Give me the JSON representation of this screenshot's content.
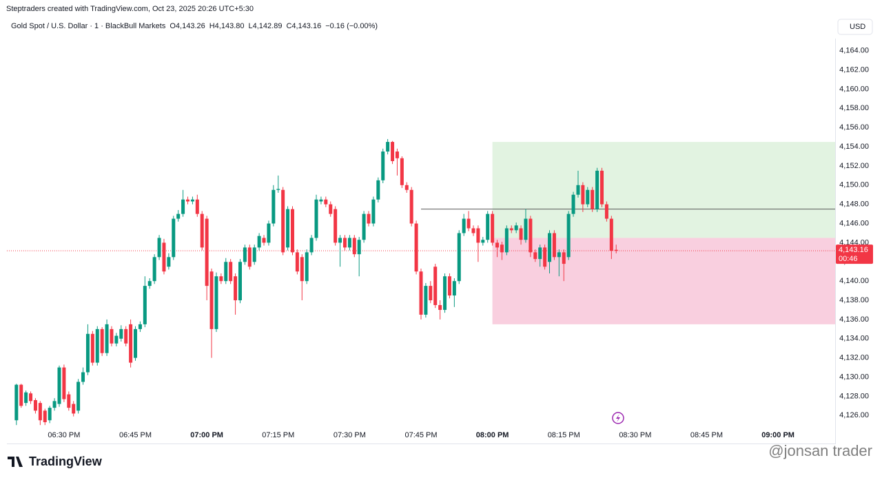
{
  "header": "Steptraders created with TradingView.com, Oct 23, 2025 20:26 UTC+5:30",
  "logo": "TradingView",
  "watermark": "@jonsan trader",
  "chart_data": {
    "type": "candlestick",
    "symbol": "Gold Spot / U.S. Dollar · 1 · BlackBull Markets",
    "ohlc_legend": [
      "O4,143.26",
      "H4,143.80",
      "L4,142.89",
      "C4,143.16",
      "−0.16 (−0.00%)"
    ],
    "currency": "USD",
    "up_color": "#089981",
    "down_color": "#f23645",
    "x": [
      "06:20 PM",
      "06:21 PM",
      "06:22 PM",
      "06:23 PM",
      "06:24 PM",
      "06:25 PM",
      "06:26 PM",
      "06:27 PM",
      "06:28 PM",
      "06:29 PM",
      "06:30 PM",
      "06:31 PM",
      "06:32 PM",
      "06:33 PM",
      "06:34 PM",
      "06:35 PM",
      "06:36 PM",
      "06:37 PM",
      "06:38 PM",
      "06:39 PM",
      "06:40 PM",
      "06:41 PM",
      "06:42 PM",
      "06:43 PM",
      "06:44 PM",
      "06:45 PM",
      "06:46 PM",
      "06:47 PM",
      "06:48 PM",
      "06:49 PM",
      "06:50 PM",
      "06:51 PM",
      "06:52 PM",
      "06:53 PM",
      "06:54 PM",
      "06:55 PM",
      "06:56 PM",
      "06:57 PM",
      "06:58 PM",
      "06:59 PM",
      "07:00 PM",
      "07:01 PM",
      "07:02 PM",
      "07:03 PM",
      "07:04 PM",
      "07:05 PM",
      "07:06 PM",
      "07:07 PM",
      "07:08 PM",
      "07:09 PM",
      "07:10 PM",
      "07:11 PM",
      "07:12 PM",
      "07:13 PM",
      "07:14 PM",
      "07:15 PM",
      "07:16 PM",
      "07:17 PM",
      "07:18 PM",
      "07:19 PM",
      "07:20 PM",
      "07:21 PM",
      "07:22 PM",
      "07:23 PM",
      "07:24 PM",
      "07:25 PM",
      "07:26 PM",
      "07:27 PM",
      "07:28 PM",
      "07:29 PM",
      "07:30 PM",
      "07:31 PM",
      "07:32 PM",
      "07:33 PM",
      "07:34 PM",
      "07:35 PM",
      "07:36 PM",
      "07:37 PM",
      "07:38 PM",
      "07:39 PM",
      "07:40 PM",
      "07:41 PM",
      "07:42 PM",
      "07:43 PM",
      "07:44 PM",
      "07:45 PM",
      "07:46 PM",
      "07:47 PM",
      "07:48 PM",
      "07:49 PM",
      "07:50 PM",
      "07:51 PM",
      "07:52 PM",
      "07:53 PM",
      "07:54 PM",
      "07:55 PM",
      "07:56 PM",
      "07:57 PM",
      "07:58 PM",
      "07:59 PM",
      "08:00 PM",
      "08:01 PM",
      "08:02 PM",
      "08:03 PM",
      "08:04 PM",
      "08:05 PM",
      "08:06 PM",
      "08:07 PM",
      "08:08 PM",
      "08:09 PM",
      "08:10 PM",
      "08:11 PM",
      "08:12 PM",
      "08:13 PM",
      "08:14 PM",
      "08:15 PM",
      "08:16 PM",
      "08:17 PM",
      "08:18 PM",
      "08:19 PM",
      "08:20 PM",
      "08:21 PM",
      "08:22 PM",
      "08:23 PM",
      "08:24 PM",
      "08:25 PM",
      "08:26 PM"
    ],
    "open": [
      4125.5,
      4129.2,
      4127.3,
      4128.3,
      4127.6,
      4127.3,
      4126.5,
      4125.5,
      4126.8,
      4127.2,
      4131,
      4128.2,
      4127.2,
      4126.5,
      4129.5,
      4130.5,
      4134.5,
      4131.5,
      4135,
      4132.5,
      4135,
      4133.5,
      4134,
      4135,
      4135.5,
      4132,
      4135,
      4135.5,
      4139.5,
      4140,
      4142.5,
      4144,
      4141.5,
      4142.5,
      4146.5,
      4147,
      4148.5,
      4148.3,
      4148.5,
      4147,
      4146.5,
      4141,
      4135,
      4140.5,
      4140,
      4142,
      4140.5,
      4138,
      4142,
      4143.5,
      4142,
      4143.5,
      4144.5,
      4144,
      4146,
      4149.5,
      4149.5,
      4143.5,
      4147.5,
      4143,
      4142.5,
      4140,
      4143,
      4144.5,
      4148.3,
      4148.5,
      4148,
      4147.5,
      4144,
      4144.5,
      4143.5,
      4144.5,
      4142.8,
      4144.3,
      4147,
      4146,
      4148.5,
      4150.5,
      4153.5,
      4154.5,
      4153.5,
      4152.8,
      4150,
      4149.5,
      4146,
      4141,
      4136.5,
      4139.5,
      4141.5,
      4137.5,
      4137,
      4140.5,
      4138.5,
      4140,
      4145,
      4146.5,
      4145.5,
      4145.5,
      4144,
      4144.3,
      4147,
      4144,
      4143.8,
      4143,
      4145.5,
      4145.3,
      4145.5,
      4144.3,
      4146.5,
      4143,
      4142.3,
      4143.5,
      4142,
      4145,
      4142.5,
      4143,
      4142.5,
      4147,
      4149,
      4150,
      4148,
      4149.5,
      4147.5,
      4151.5,
      4148,
      4146.5,
      4143.26
    ],
    "high": [
      4129.3,
      4129.3,
      4128.6,
      4128.5,
      4127.8,
      4127.5,
      4126.7,
      4127,
      4127.8,
      4131.2,
      4131.3,
      4128.5,
      4127.5,
      4129.8,
      4131,
      4135.5,
      4134.8,
      4135.3,
      4135.2,
      4136,
      4135.3,
      4134.6,
      4135.4,
      4135.3,
      4136,
      4135.3,
      4135.8,
      4140.5,
      4140.3,
      4142.8,
      4144.8,
      4144.4,
      4142.9,
      4146.8,
      4147.4,
      4149.5,
      4148.8,
      4148.8,
      4149,
      4147.3,
      4146.8,
      4141.3,
      4140.9,
      4140.8,
      4142.4,
      4142.3,
      4140.8,
      4142.3,
      4143.8,
      4143.8,
      4143.8,
      4145,
      4144.8,
      4146.3,
      4150,
      4151,
      4149.8,
      4147.8,
      4147.8,
      4143.3,
      4142.8,
      4143.3,
      4144.8,
      4149,
      4148.8,
      4148.8,
      4148.3,
      4147.8,
      4144.8,
      4144.8,
      4144.8,
      4144.8,
      4144.6,
      4147.3,
      4147.3,
      4148.8,
      4150.8,
      4153.8,
      4154.8,
      4154.6,
      4153.8,
      4153,
      4150.3,
      4149.8,
      4146.3,
      4141.3,
      4139.8,
      4140,
      4141.8,
      4138,
      4140.8,
      4140.8,
      4140.3,
      4145.3,
      4147,
      4147.3,
      4145.8,
      4145.8,
      4144.6,
      4147.3,
      4147.3,
      4144.3,
      4144.1,
      4145.8,
      4145.8,
      4146.1,
      4145.8,
      4147.5,
      4146.8,
      4143.3,
      4143.8,
      4143.8,
      4145.3,
      4145.3,
      4143.3,
      4143.3,
      4147.3,
      4149.3,
      4151.5,
      4150.3,
      4149.8,
      4149.8,
      4151.8,
      4151.8,
      4148.3,
      4146.8,
      4143.8
    ],
    "low": [
      4125,
      4126.8,
      4127,
      4127.2,
      4126.2,
      4125,
      4125,
      4125.2,
      4126.5,
      4126.9,
      4127.4,
      4126.5,
      4125.9,
      4126.2,
      4129.2,
      4130.2,
      4131.2,
      4131.2,
      4132.2,
      4132.2,
      4133.2,
      4133.2,
      4133.7,
      4133.2,
      4131,
      4131.7,
      4134.7,
      4135.2,
      4139.2,
      4139.7,
      4142.2,
      4140.7,
      4141.2,
      4142.2,
      4146.2,
      4146.7,
      4148,
      4148,
      4146.7,
      4143.2,
      4138,
      4132,
      4134.7,
      4139.7,
      4139.7,
      4139.7,
      4136.5,
      4137.7,
      4141.7,
      4141.2,
      4141.7,
      4143.2,
      4143.7,
      4143.7,
      4145.7,
      4149.2,
      4142.7,
      4143.2,
      4142.7,
      4140.7,
      4138,
      4139.7,
      4142.7,
      4144.2,
      4148,
      4147.7,
      4146.7,
      4143.7,
      4141.5,
      4143.2,
      4143.2,
      4142.5,
      4140.5,
      4144,
      4145.7,
      4145.7,
      4148.2,
      4150.2,
      4153.2,
      4152.2,
      4151,
      4149.7,
      4149.2,
      4145.7,
      4140.7,
      4136,
      4136.2,
      4137.7,
      4137.2,
      4136,
      4136.7,
      4138.2,
      4137.3,
      4139.7,
      4144.7,
      4145.2,
      4144.7,
      4142,
      4143.7,
      4144,
      4143.7,
      4142.5,
      4142.2,
      4142.7,
      4145,
      4145,
      4143.8,
      4144,
      4142.5,
      4142,
      4141.5,
      4141.2,
      4140.8,
      4142.2,
      4140.5,
      4140,
      4142.2,
      4146.7,
      4148.7,
      4147.2,
      4147.7,
      4147.2,
      4147.2,
      4147.7,
      4146.2,
      4142.3,
      4142.89
    ],
    "close": [
      4129.2,
      4127,
      4128.4,
      4127.5,
      4126.5,
      4125.5,
      4125.3,
      4126.8,
      4127.5,
      4131,
      4127.7,
      4126.8,
      4126.2,
      4129.5,
      4130.5,
      4134.5,
      4131.5,
      4135,
      4132.5,
      4135.5,
      4133.5,
      4134.3,
      4135,
      4133.5,
      4131.5,
      4135,
      4135.5,
      4139.5,
      4140,
      4142.5,
      4144.5,
      4141,
      4142.5,
      4146.5,
      4147,
      4148.5,
      4148.3,
      4148.5,
      4147,
      4143.5,
      4139.5,
      4135,
      4140.5,
      4140,
      4142,
      4140,
      4138,
      4142,
      4143.5,
      4141.5,
      4143.5,
      4144.7,
      4144,
      4146,
      4149.5,
      4149.6,
      4143,
      4147.5,
      4143,
      4141,
      4140,
      4143,
      4144.5,
      4148.5,
      4148.5,
      4148,
      4147,
      4144,
      4144.5,
      4143.5,
      4144.5,
      4142.8,
      4144.3,
      4147,
      4146,
      4148.5,
      4150.5,
      4153.5,
      4154.5,
      4152.5,
      4152.8,
      4150,
      4149.5,
      4146,
      4141,
      4136.5,
      4139.5,
      4138,
      4137.5,
      4137,
      4140.5,
      4138.5,
      4140,
      4145,
      4146.5,
      4145.5,
      4145,
      4144,
      4144.3,
      4147,
      4144,
      4143.5,
      4143,
      4145.5,
      4145.3,
      4145.8,
      4144.3,
      4146.5,
      4143,
      4142.3,
      4143.5,
      4141.5,
      4145,
      4142.5,
      4143,
      4141.8,
      4147,
      4149,
      4150,
      4148,
      4149.5,
      4147.5,
      4151.5,
      4148,
      4146.5,
      4143.16,
      4143.16
    ],
    "xlim": [
      "06:18 PM",
      "09:12 PM"
    ],
    "xticks": [
      "06:30 PM",
      "06:45 PM",
      "07:00 PM",
      "07:15 PM",
      "07:30 PM",
      "07:45 PM",
      "08:00 PM",
      "08:15 PM",
      "08:30 PM",
      "08:45 PM",
      "09:00 PM"
    ],
    "ylim": [
      4124.8,
      4165.7
    ],
    "yticks": [
      {
        "value": 4126,
        "label": "4,126.00"
      },
      {
        "value": 4128,
        "label": "4,128.00"
      },
      {
        "value": 4130,
        "label": "4,130.00"
      },
      {
        "value": 4132,
        "label": "4,132.00"
      },
      {
        "value": 4134,
        "label": "4,134.00"
      },
      {
        "value": 4136,
        "label": "4,136.00"
      },
      {
        "value": 4138,
        "label": "4,138.00"
      },
      {
        "value": 4140,
        "label": "4,140.00"
      },
      {
        "value": 4142,
        "label": "4,142.00"
      },
      {
        "value": 4144,
        "label": "4,144.00"
      },
      {
        "value": 4146,
        "label": "4,146.00"
      },
      {
        "value": 4148,
        "label": "4,148.00"
      },
      {
        "value": 4150,
        "label": "4,150.00"
      },
      {
        "value": 4152,
        "label": "4,152.00"
      },
      {
        "value": 4154,
        "label": "4,154.00"
      },
      {
        "value": 4156,
        "label": "4,156.00"
      },
      {
        "value": 4158,
        "label": "4,158.00"
      },
      {
        "value": 4160,
        "label": "4,160.00"
      },
      {
        "value": 4162,
        "label": "4,162.00"
      },
      {
        "value": 4164,
        "label": "4,164.00"
      }
    ],
    "last_price": {
      "value": 4143.16,
      "label": "4,143.16"
    },
    "countdown": "00:46",
    "position": {
      "start": "08:00 PM",
      "target": 4154.5,
      "entry": 4144.5,
      "stop": 4135.5,
      "profit_color": "#e2f3e1",
      "loss_color": "#f9cfdf"
    },
    "hline": {
      "value": 4147.5,
      "start": "07:45 PM"
    }
  }
}
